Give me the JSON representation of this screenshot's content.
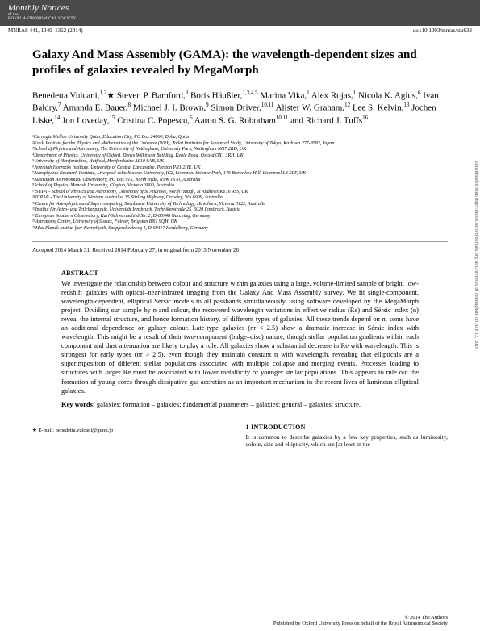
{
  "header": {
    "journal_title": "Monthly Notices",
    "journal_of": "of the",
    "journal_society": "ROYAL ASTRONOMICAL SOCIETY"
  },
  "meta": {
    "citation": "MNRAS 441, 1340–1362 (2014)",
    "doi": "doi:10.1093/mnras/stu632"
  },
  "title": "Galaxy And Mass Assembly (GAMA): the wavelength-dependent sizes and profiles of galaxies revealed by MegaMorph",
  "authors_html": "Benedetta Vulcani,<sup>1,2</sup>★ Steven P. Bamford,<sup>3</sup> Boris Häußler,<sup>1,3,4,5</sup> Marina Vika,<sup>1</sup> Alex Rojas,<sup>1</sup> Nicola K. Agius,<sup>6</sup> Ivan Baldry,<sup>7</sup> Amanda E. Bauer,<sup>8</sup> Michael J. I. Brown,<sup>9</sup> Simon Driver,<sup>10,11</sup> Alister W. Graham,<sup>12</sup> Lee S. Kelvin,<sup>13</sup> Jochen Liske,<sup>14</sup> Jon Loveday,<sup>15</sup> Cristina C. Popescu,<sup>6</sup> Aaron S. G. Robotham<sup>10,11</sup> and Richard J. Tuffs<sup>16</sup>",
  "affiliations": [
    "¹Carnegie Mellon University Qatar, Education City, PO Box 24866, Doha, Qatar",
    "²Kavli Institute for the Physics and Mathematics of the Universe (WPI), Todai Institutes for Advanced Study, University of Tokyo, Kashiwa 277-8582, Japan",
    "³School of Physics and Astronomy, The University of Nottingham, University Park, Nottingham NG7 2RD, UK",
    "⁴Department of Physics, University of Oxford, Denys Wilkinson Building, Keble Road, Oxford OX1 3RH, UK",
    "⁵University of Hertfordshire, Hatfield, Hertfordshire AL10 9AB, UK",
    "⁶Jeremiah Horrocks Institute, University of Central Lancashire, Preston PR1 2HE, UK",
    "⁷Astrophysics Research Institute, Liverpool John Moores University, IC2, Liverpool Science Park, 146 Brownlow Hill, Liverpool L3 5RF, UK",
    "⁸Australian Astronomical Observatory, PO Box 915, North Ryde, NSW 1670, Australia",
    "⁹School of Physics, Monash University, Clayton, Victoria 3800, Australia",
    "¹⁰SUPA – School of Physics and Astronomy, University of St Andrews, North Haugh, St Andrews KY16 9SS, UK",
    "¹¹ICRAR - The University of Western Australia, 35 Stirling Highway, Crawley, WA 6009, Australia",
    "¹²Centre for Astrophysics and Supercomputing, Swinburne University of Technology, Hawthorn, Victoria 3122, Australia",
    "¹³Institut für Astro- und Teilchenphysik, Universität Innsbruck, Technikerstraße 25, 6020 Innsbruck, Austria",
    "¹⁴European Southern Observatory, Karl-Schwarzschild-Str. 2, D-85748 Garching, Germany",
    "¹⁵Astronomy Centre, University of Sussex, Falmer, Brighton BN1 9QH, UK",
    "¹⁶Max Planck Institut fuer Kernphysik, Saupfercheckweg 1, D-69117 Heidelberg, Germany"
  ],
  "dates": "Accepted 2014 March 31. Received 2014 February 27; in original form 2013 November 26",
  "abstract": {
    "head": "ABSTRACT",
    "body": "We investigate the relationship between colour and structure within galaxies using a large, volume-limited sample of bright, low-redshift galaxies with optical–near-infrared imaging from the Galaxy And Mass Assembly survey. We fit single-component, wavelength-dependent, elliptical Sérsic models to all passbands simultaneously, using software developed by the MegaMorph project. Dividing our sample by n and colour, the recovered wavelength variations in effective radius (Re) and Sérsic index (n) reveal the internal structure, and hence formation history, of different types of galaxies. All these trends depend on n; some have an additional dependence on galaxy colour. Late-type galaxies (nr < 2.5) show a dramatic increase in Sérsic index with wavelength. This might be a result of their two-component (bulge–disc) nature, though stellar population gradients within each component and dust attenuation are likely to play a role. All galaxies show a substantial decrease in Re with wavelength. This is strongest for early types (nr > 2.5), even though they maintain constant n with wavelength, revealing that ellipticals are a superimposition of different stellar populations associated with multiple collapse and merging events. Processes leading to structures with larger Re must be associated with lower metallicity or younger stellar populations. This appears to rule out the formation of young cores through dissipative gas accretion as an important mechanism in the recent lives of luminous elliptical galaxies."
  },
  "keywords": {
    "label": "Key words:",
    "text": " galaxies: formation – galaxies: fundamental parameters – galaxies: general – galaxies: structure."
  },
  "intro": {
    "head": "1 INTRODUCTION",
    "body": "It is common to describe galaxies by a few key properties, such as luminosity, colour, size and ellipticity, which are [at least in the"
  },
  "email": "★ E-mail: benedetta.vulcani@ipmu.jp",
  "footer": {
    "left": "",
    "right_top": "© 2014 The Authors",
    "right_bottom": "Published by Oxford University Press on behalf of the Royal Astronomical Society"
  },
  "side": "Downloaded from http://mnras.oxfordjournals.org/ at University of Nottingham on July 12, 2016"
}
